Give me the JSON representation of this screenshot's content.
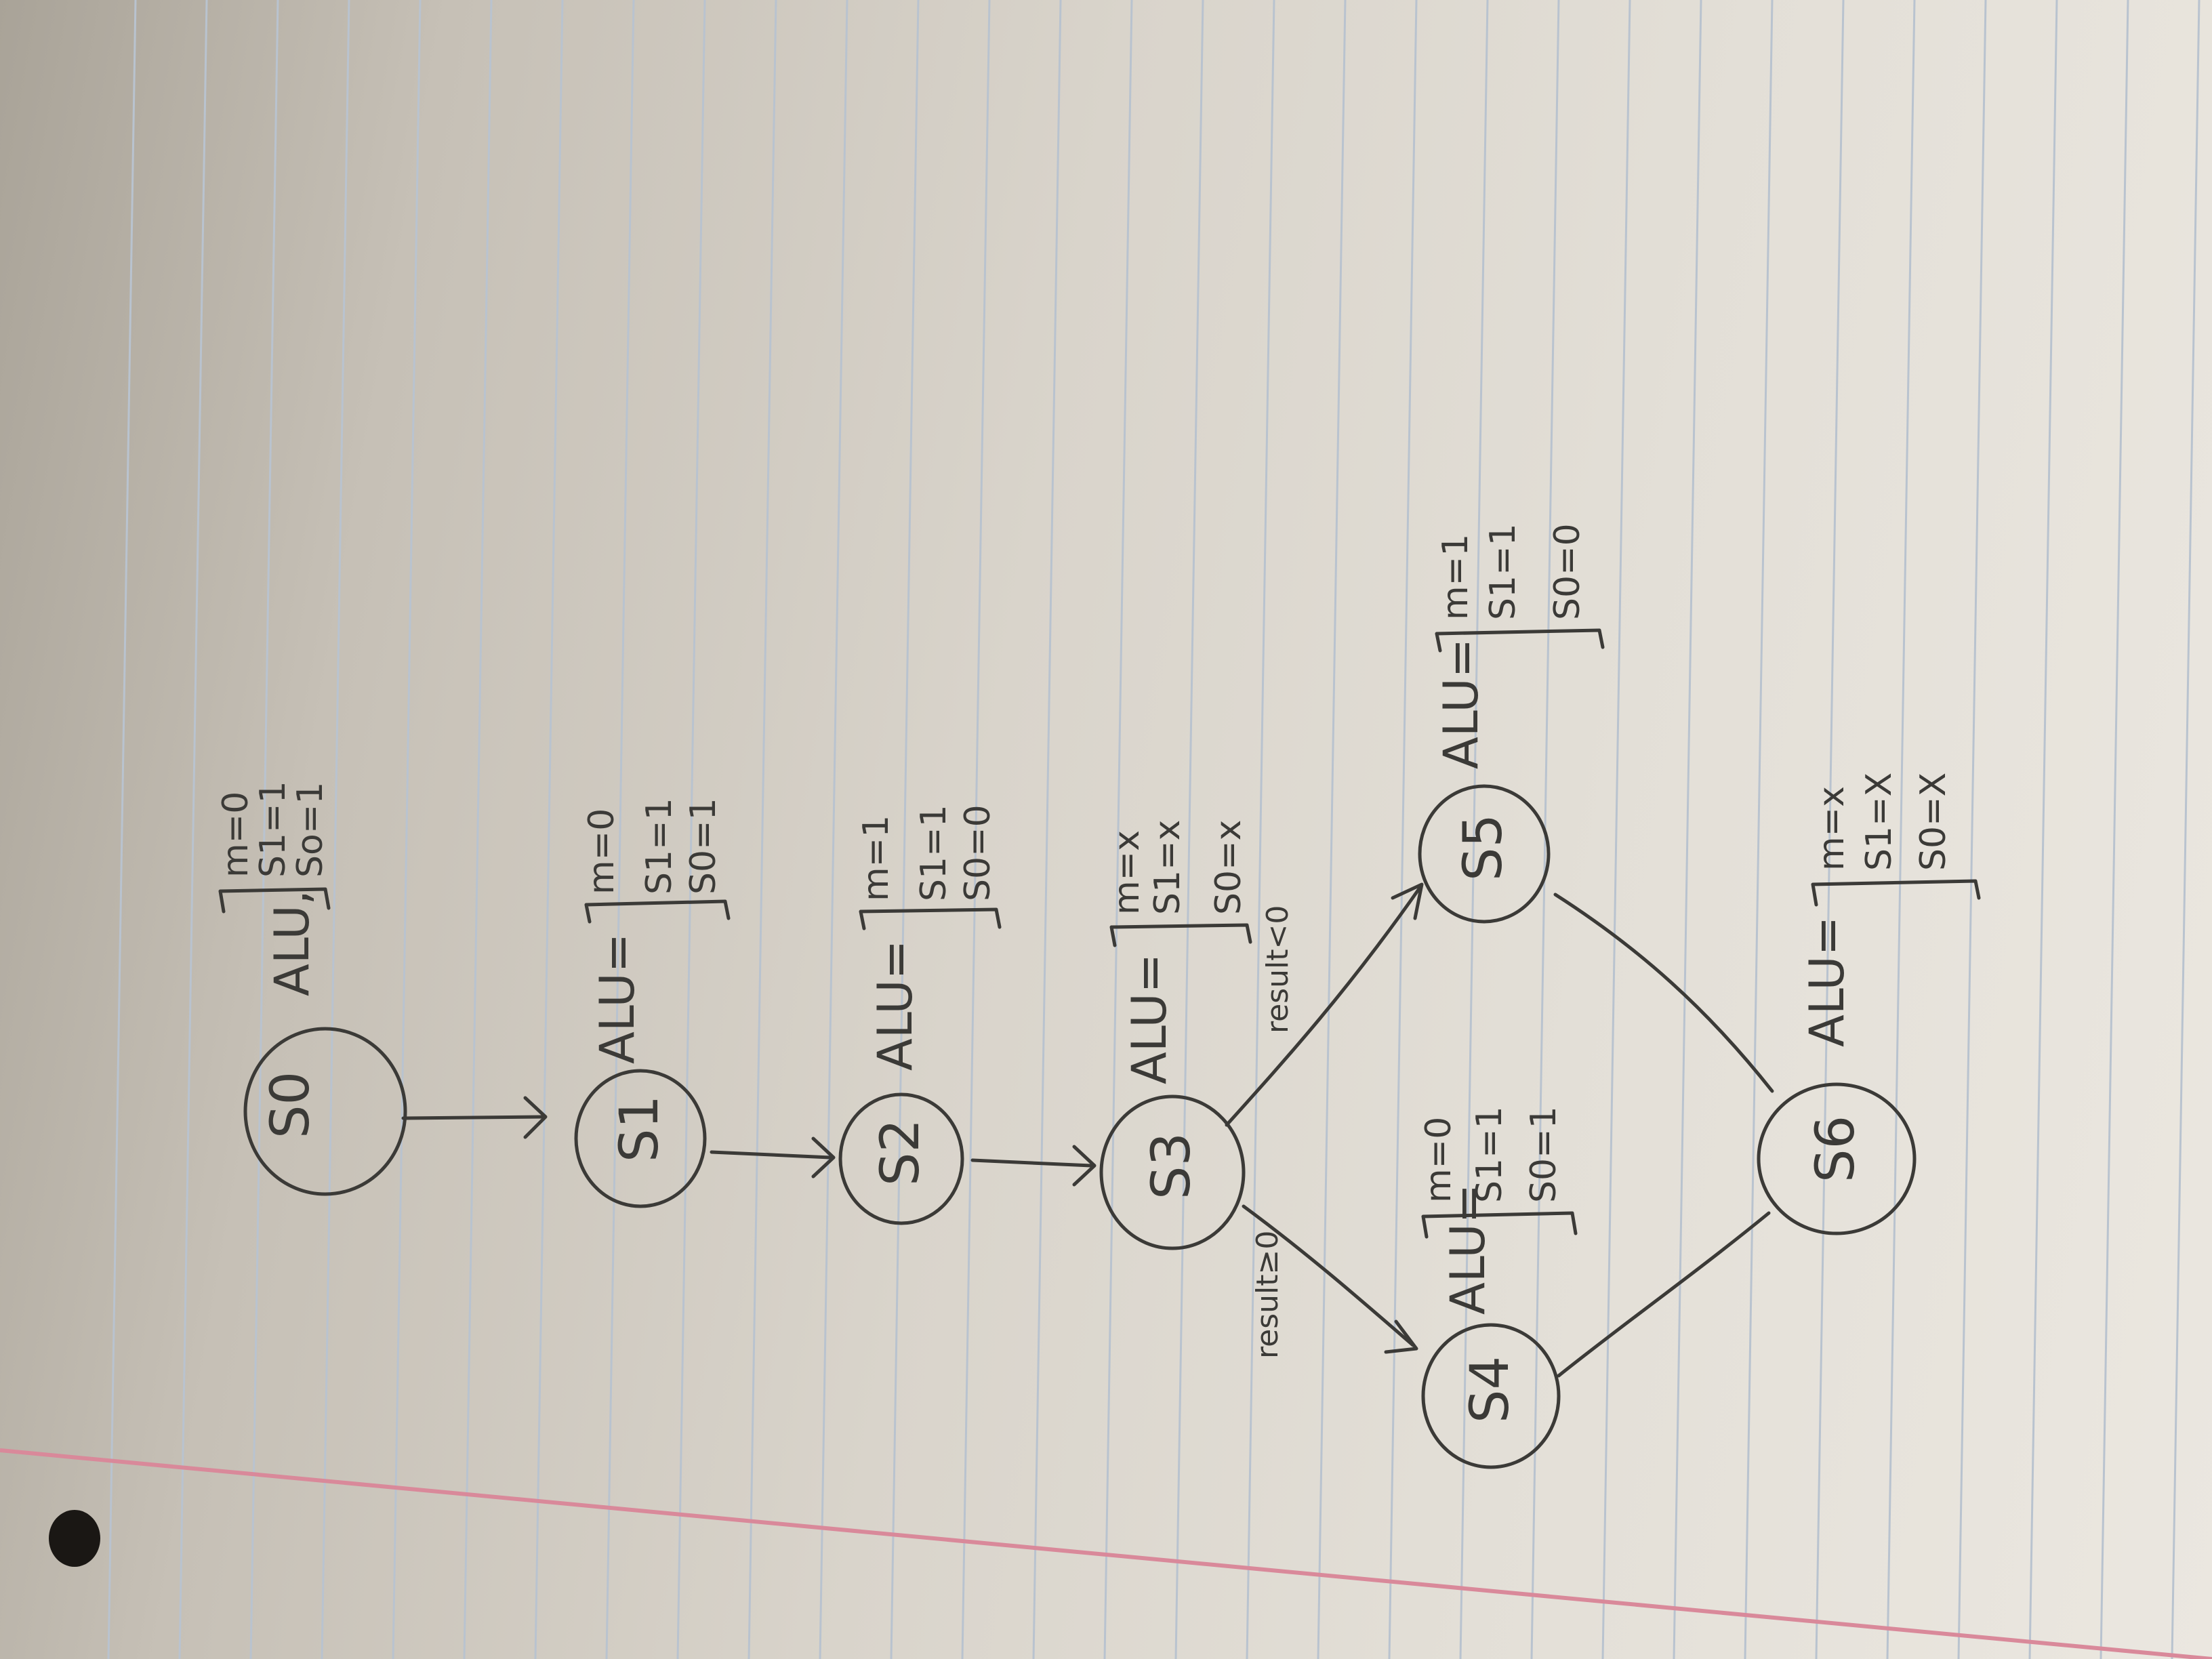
{
  "states": [
    {
      "id": "s0",
      "label": "S0",
      "alu_label": "ALU,",
      "signals": [
        "m=0",
        "S1=1",
        "So=1"
      ]
    },
    {
      "id": "s1",
      "label": "S1",
      "alu_label": "ALU=",
      "signals": [
        "m=0",
        "S1=1",
        "S0=1"
      ]
    },
    {
      "id": "s2",
      "label": "S2",
      "alu_label": "ALU=",
      "signals": [
        "m=1",
        "S1=1",
        "S0=0"
      ]
    },
    {
      "id": "s3",
      "label": "S3",
      "alu_label": "ALU=",
      "signals": [
        "m=x",
        "S1=x",
        "S0=x"
      ]
    },
    {
      "id": "s4",
      "label": "S4",
      "alu_label": "ALU=",
      "signals": [
        "m=0",
        "S1=1",
        "S0=1"
      ]
    },
    {
      "id": "s5",
      "label": "S5",
      "alu_label": "ALU=",
      "signals": [
        "m=1",
        "S1=1",
        "S0=0"
      ]
    },
    {
      "id": "s6",
      "label": "S6",
      "alu_label": "ALU=",
      "signals": [
        "m=x",
        "S1=X",
        "S0=X"
      ]
    }
  ],
  "transitions": [
    {
      "from": "S0",
      "to": "S1",
      "label": ""
    },
    {
      "from": "S1",
      "to": "S2",
      "label": ""
    },
    {
      "from": "S2",
      "to": "S3",
      "label": ""
    },
    {
      "from": "S3",
      "to": "S5",
      "label": "result<0"
    },
    {
      "from": "S3",
      "to": "S4",
      "label": "result≥0"
    },
    {
      "from": "S4",
      "to": "S6",
      "label": ""
    },
    {
      "from": "S5",
      "to": "S6",
      "label": ""
    }
  ],
  "colors": {
    "ink": "#3b3a37",
    "rule_line": "#b9c3cf",
    "margin_line": "#d9899a",
    "hole": "#1a1714"
  }
}
